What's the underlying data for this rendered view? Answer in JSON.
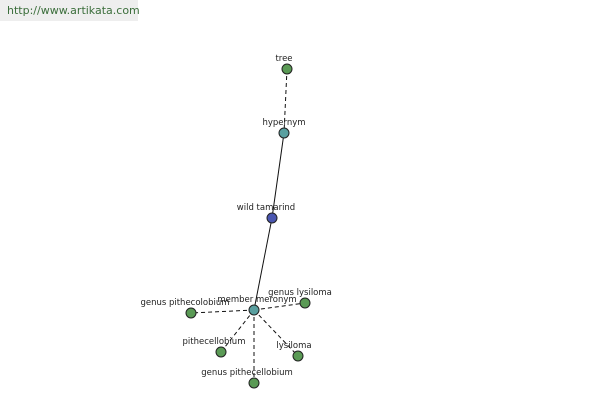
{
  "header": {
    "url": "http://www.artikata.com"
  },
  "nodes": [
    {
      "label": "tree"
    },
    {
      "label": "hypernym"
    },
    {
      "label": "wild tamarind"
    },
    {
      "label": "member meronym"
    },
    {
      "label": "genus pithecolobium"
    },
    {
      "label": "genus lysiloma"
    },
    {
      "label": "pithecellobium"
    },
    {
      "label": "lysiloma"
    },
    {
      "label": "genus pithecellobium"
    }
  ]
}
